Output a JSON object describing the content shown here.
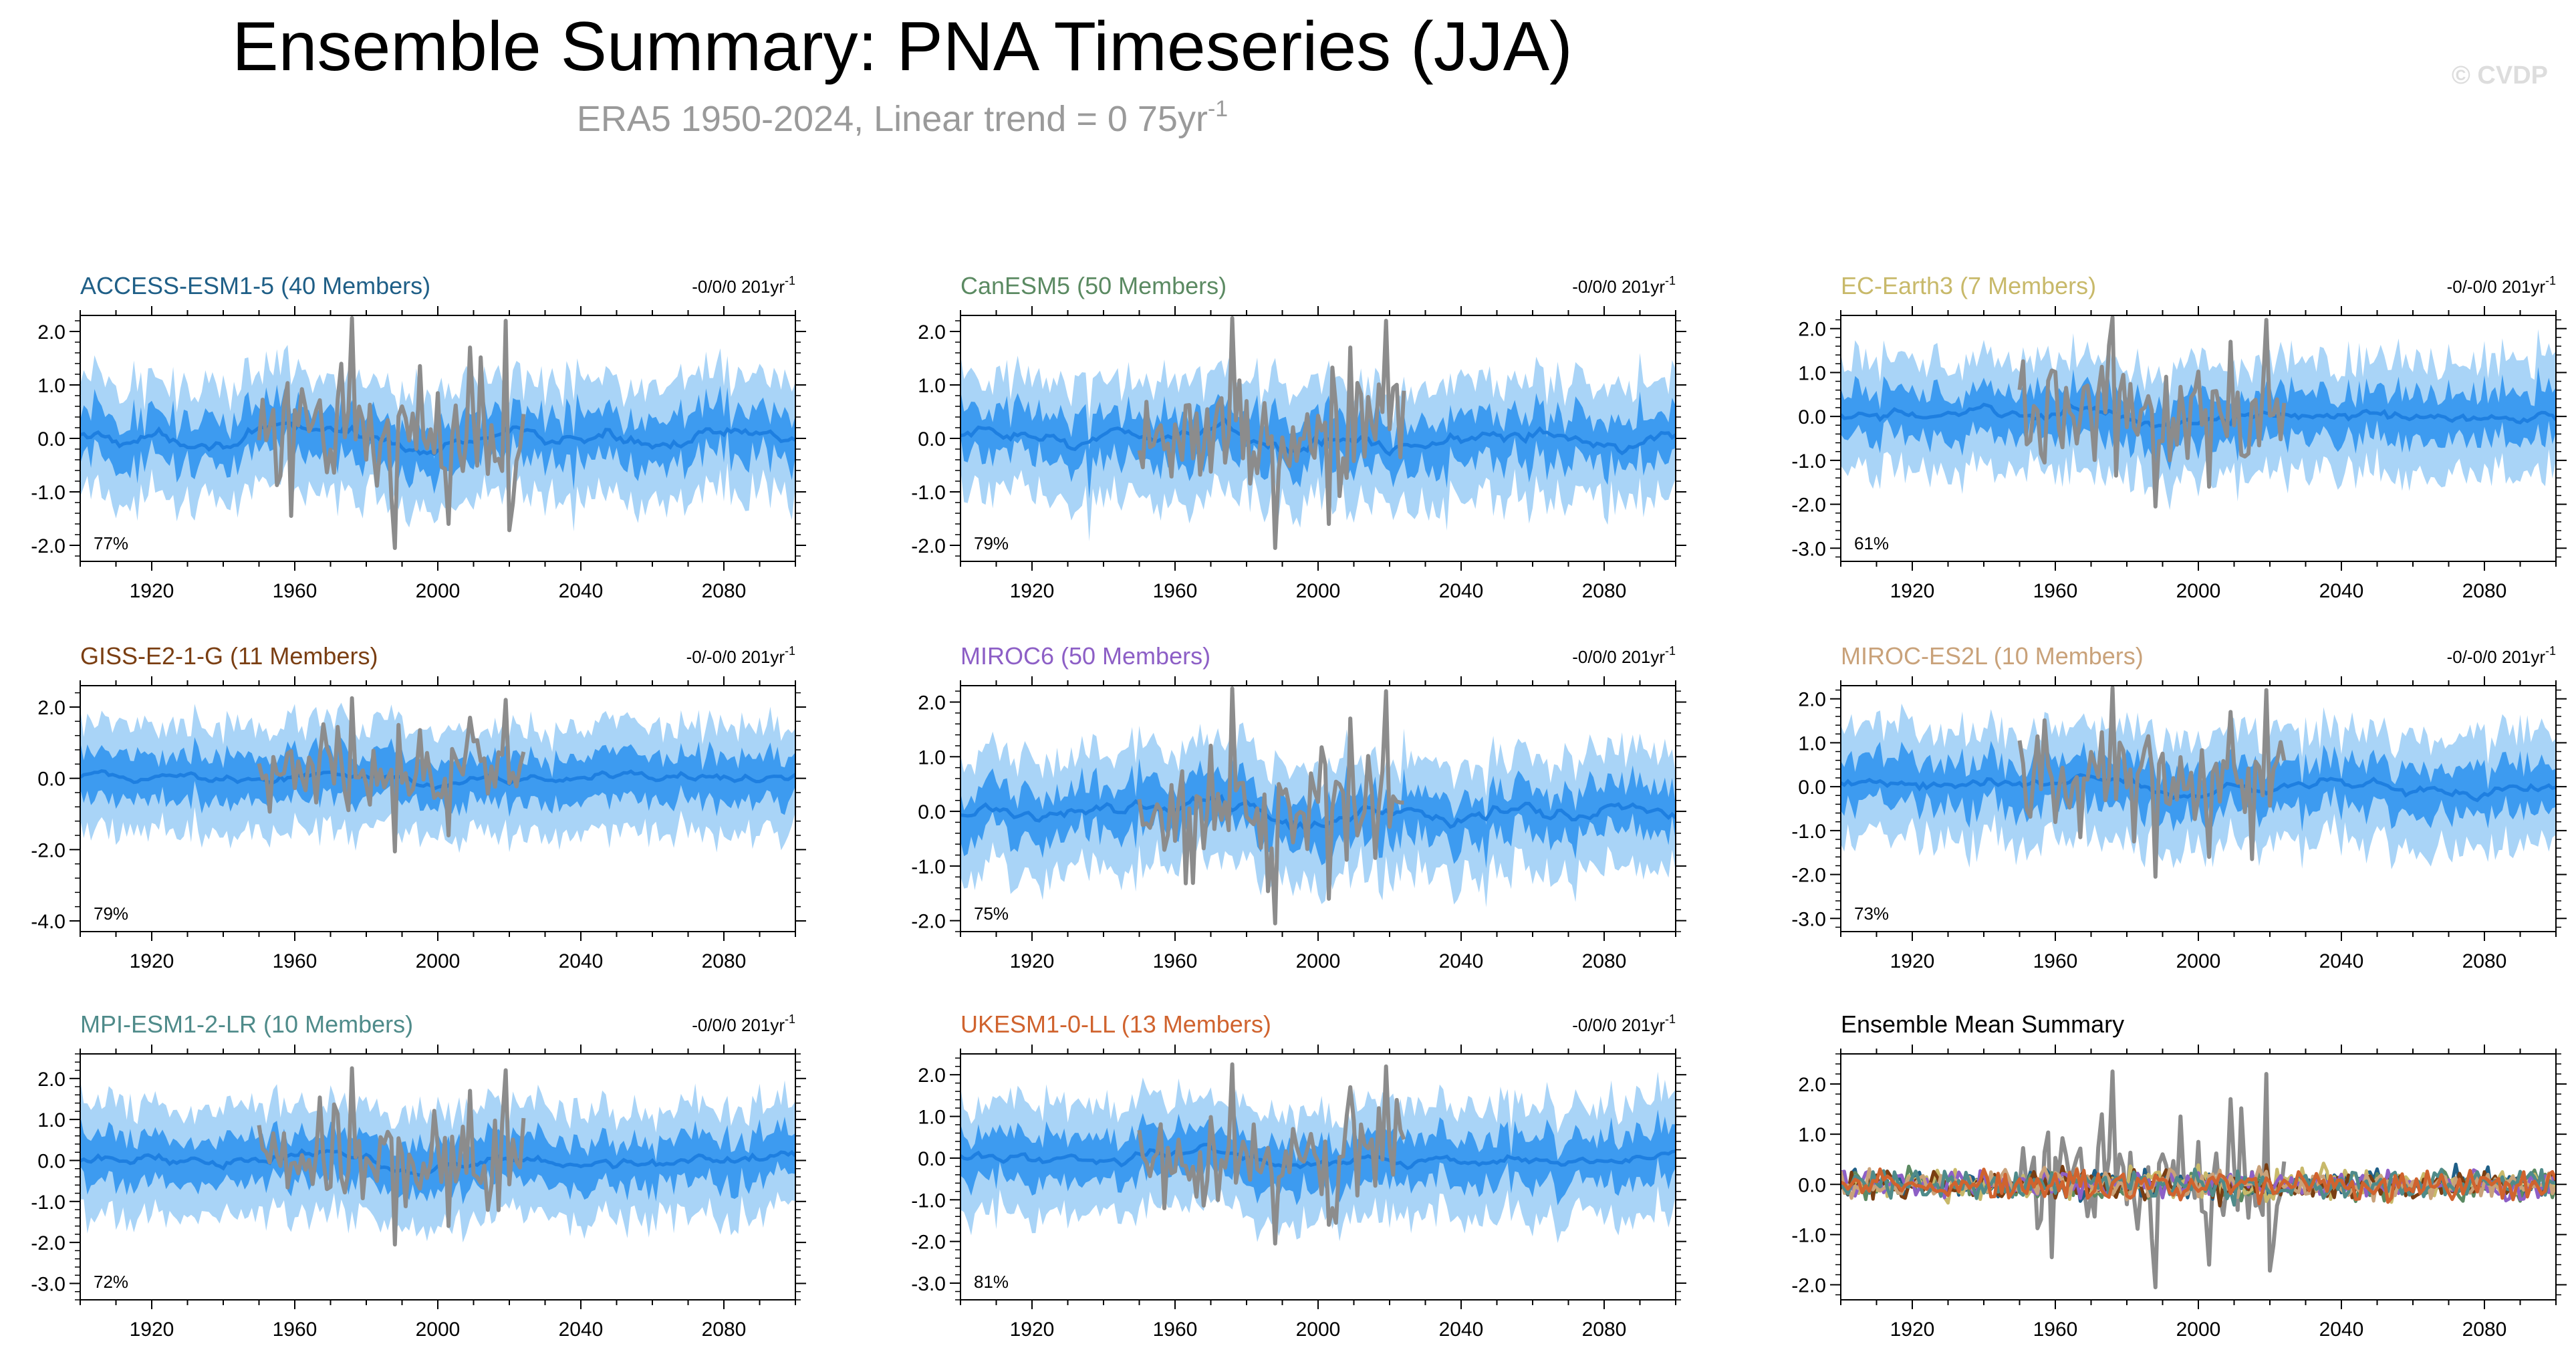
{
  "header": {
    "title": "Ensemble Summary: PNA Timeseries (JJA)",
    "subtitle_text": "ERA5 1950-2024, Linear trend = 0 75yr",
    "subtitle_sup": "-1",
    "watermark": "© CVDP"
  },
  "colors": {
    "spread_outer": "#a9d4f7",
    "spread_inner": "#3d9bf0",
    "ens_mean": "#1e7fe0",
    "observed": "#8c8c8c"
  },
  "chart_data": [
    {
      "type": "line",
      "panel": "ACCESS-ESM1-5",
      "title": "ACCESS-ESM1-5 (40 Members)",
      "title_color": "#1f5f87",
      "trend_text": "-0/0/0 201yr",
      "trend_sup": "-1",
      "pct": "77%",
      "x_ticks": [
        "1920",
        "1960",
        "2000",
        "2040",
        "2080"
      ],
      "xlim": [
        1900,
        2100
      ],
      "y_ticks": [
        "2.0",
        "1.0",
        "0.0",
        "-1.0",
        "-2.0"
      ],
      "y_tick_values": [
        2,
        1,
        0,
        -1,
        -2
      ],
      "ylim": [
        -2.3,
        2.3
      ],
      "series": [
        {
          "name": "Observed (ERA5)",
          "x_range": [
            1950,
            2024
          ]
        },
        {
          "name": "Ensemble mean",
          "x_range": [
            1900,
            2100
          ]
        },
        {
          "name": "Ensemble spread",
          "x_range": [
            1900,
            2100
          ]
        }
      ]
    },
    {
      "type": "line",
      "panel": "CanESM5",
      "title": "CanESM5 (50 Members)",
      "title_color": "#5b8a62",
      "trend_text": "-0/0/0 201yr",
      "trend_sup": "-1",
      "pct": "79%",
      "x_ticks": [
        "1920",
        "1960",
        "2000",
        "2040",
        "2080"
      ],
      "xlim": [
        1900,
        2100
      ],
      "y_ticks": [
        "2.0",
        "1.0",
        "0.0",
        "-1.0",
        "-2.0"
      ],
      "y_tick_values": [
        2,
        1,
        0,
        -1,
        -2
      ],
      "ylim": [
        -2.3,
        2.3
      ],
      "series": [
        {
          "name": "Observed (ERA5)",
          "x_range": [
            1950,
            2024
          ]
        },
        {
          "name": "Ensemble mean",
          "x_range": [
            1900,
            2100
          ]
        },
        {
          "name": "Ensemble spread",
          "x_range": [
            1900,
            2100
          ]
        }
      ]
    },
    {
      "type": "line",
      "panel": "EC-Earth3",
      "title": "EC-Earth3 (7 Members)",
      "title_color": "#c8b96a",
      "trend_text": "-0/-0/0 201yr",
      "trend_sup": "-1",
      "pct": "61%",
      "x_ticks": [
        "1920",
        "1960",
        "2000",
        "2040",
        "2080"
      ],
      "xlim": [
        1900,
        2100
      ],
      "y_ticks": [
        "2.0",
        "1.0",
        "0.0",
        "-1.0",
        "-2.0",
        "-3.0"
      ],
      "y_tick_values": [
        2,
        1,
        0,
        -1,
        -2,
        -3
      ],
      "ylim": [
        -3.3,
        2.3
      ],
      "series": [
        {
          "name": "Observed (ERA5)",
          "x_range": [
            1950,
            2024
          ]
        },
        {
          "name": "Ensemble mean",
          "x_range": [
            1900,
            2100
          ]
        },
        {
          "name": "Ensemble spread",
          "x_range": [
            1900,
            2100
          ]
        }
      ]
    },
    {
      "type": "line",
      "panel": "GISS-E2-1-G",
      "title": "GISS-E2-1-G (11 Members)",
      "title_color": "#7a3e12",
      "trend_text": "-0/-0/0 201yr",
      "trend_sup": "-1",
      "pct": "79%",
      "x_ticks": [
        "1920",
        "1960",
        "2000",
        "2040",
        "2080"
      ],
      "xlim": [
        1900,
        2100
      ],
      "y_ticks": [
        "2.0",
        "0.0",
        "-2.0",
        "-4.0"
      ],
      "y_tick_values": [
        2,
        0,
        -2,
        -4
      ],
      "ylim": [
        -4.3,
        2.6
      ],
      "series": [
        {
          "name": "Observed (ERA5)",
          "x_range": [
            1950,
            2024
          ]
        },
        {
          "name": "Ensemble mean",
          "x_range": [
            1900,
            2100
          ]
        },
        {
          "name": "Ensemble spread",
          "x_range": [
            1900,
            2100
          ]
        }
      ]
    },
    {
      "type": "line",
      "panel": "MIROC6",
      "title": "MIROC6 (50 Members)",
      "title_color": "#8d5fc6",
      "trend_text": "-0/0/0 201yr",
      "trend_sup": "-1",
      "pct": "75%",
      "x_ticks": [
        "1920",
        "1960",
        "2000",
        "2040",
        "2080"
      ],
      "xlim": [
        1900,
        2100
      ],
      "y_ticks": [
        "2.0",
        "1.0",
        "0.0",
        "-1.0",
        "-2.0"
      ],
      "y_tick_values": [
        2,
        1,
        0,
        -1,
        -2
      ],
      "ylim": [
        -2.2,
        2.3
      ],
      "series": [
        {
          "name": "Observed (ERA5)",
          "x_range": [
            1950,
            2024
          ]
        },
        {
          "name": "Ensemble mean",
          "x_range": [
            1900,
            2100
          ]
        },
        {
          "name": "Ensemble spread",
          "x_range": [
            1900,
            2100
          ]
        }
      ]
    },
    {
      "type": "line",
      "panel": "MIROC-ES2L",
      "title": "MIROC-ES2L (10 Members)",
      "title_color": "#c9a27a",
      "trend_text": "-0/-0/0 201yr",
      "trend_sup": "-1",
      "pct": "73%",
      "x_ticks": [
        "1920",
        "1960",
        "2000",
        "2040",
        "2080"
      ],
      "xlim": [
        1900,
        2100
      ],
      "y_ticks": [
        "2.0",
        "1.0",
        "0.0",
        "-1.0",
        "-2.0",
        "-3.0"
      ],
      "y_tick_values": [
        2,
        1,
        0,
        -1,
        -2,
        -3
      ],
      "ylim": [
        -3.3,
        2.3
      ],
      "series": [
        {
          "name": "Observed (ERA5)",
          "x_range": [
            1950,
            2024
          ]
        },
        {
          "name": "Ensemble mean",
          "x_range": [
            1900,
            2100
          ]
        },
        {
          "name": "Ensemble spread",
          "x_range": [
            1900,
            2100
          ]
        }
      ]
    },
    {
      "type": "line",
      "panel": "MPI-ESM1-2-LR",
      "title": "MPI-ESM1-2-LR (10 Members)",
      "title_color": "#4f8b8a",
      "trend_text": "-0/0/0 201yr",
      "trend_sup": "-1",
      "pct": "72%",
      "x_ticks": [
        "1920",
        "1960",
        "2000",
        "2040",
        "2080"
      ],
      "xlim": [
        1900,
        2100
      ],
      "y_ticks": [
        "2.0",
        "1.0",
        "0.0",
        "-1.0",
        "-2.0",
        "-3.0"
      ],
      "y_tick_values": [
        2,
        1,
        0,
        -1,
        -2,
        -3
      ],
      "ylim": [
        -3.4,
        2.6
      ],
      "series": [
        {
          "name": "Observed (ERA5)",
          "x_range": [
            1950,
            2024
          ]
        },
        {
          "name": "Ensemble mean",
          "x_range": [
            1900,
            2100
          ]
        },
        {
          "name": "Ensemble spread",
          "x_range": [
            1900,
            2100
          ]
        }
      ]
    },
    {
      "type": "line",
      "panel": "UKESM1-0-LL",
      "title": "UKESM1-0-LL (13 Members)",
      "title_color": "#d0632e",
      "trend_text": "-0/0/0 201yr",
      "trend_sup": "-1",
      "pct": "81%",
      "x_ticks": [
        "1920",
        "1960",
        "2000",
        "2040",
        "2080"
      ],
      "xlim": [
        1900,
        2100
      ],
      "y_ticks": [
        "2.0",
        "1.0",
        "0.0",
        "-1.0",
        "-2.0",
        "-3.0"
      ],
      "y_tick_values": [
        2,
        1,
        0,
        -1,
        -2,
        -3
      ],
      "ylim": [
        -3.4,
        2.5
      ],
      "series": [
        {
          "name": "Observed (ERA5)",
          "x_range": [
            1950,
            2024
          ]
        },
        {
          "name": "Ensemble mean",
          "x_range": [
            1900,
            2100
          ]
        },
        {
          "name": "Ensemble spread",
          "x_range": [
            1900,
            2100
          ]
        }
      ]
    },
    {
      "type": "line",
      "panel": "Ensemble Mean Summary",
      "title": "Ensemble Mean Summary",
      "title_color": "#000000",
      "trend_text": "",
      "trend_sup": "",
      "pct": "",
      "x_ticks": [
        "1920",
        "1960",
        "2000",
        "2040",
        "2080"
      ],
      "xlim": [
        1900,
        2100
      ],
      "y_ticks": [
        "2.0",
        "1.0",
        "0.0",
        "-1.0",
        "-2.0"
      ],
      "y_tick_values": [
        2,
        1,
        0,
        -1,
        -2
      ],
      "ylim": [
        -2.3,
        2.6
      ],
      "series": [
        {
          "name": "ERA5",
          "color": "#8c8c8c",
          "x_range": [
            1950,
            2024
          ]
        },
        {
          "name": "ACCESS-ESM1-5",
          "color": "#1f5f87",
          "x_range": [
            1900,
            2100
          ]
        },
        {
          "name": "CanESM5",
          "color": "#5b8a62",
          "x_range": [
            1900,
            2100
          ]
        },
        {
          "name": "EC-Earth3",
          "color": "#c8b96a",
          "x_range": [
            1900,
            2100
          ]
        },
        {
          "name": "GISS-E2-1-G",
          "color": "#7a3e12",
          "x_range": [
            1900,
            2100
          ]
        },
        {
          "name": "MIROC6",
          "color": "#8d5fc6",
          "x_range": [
            1900,
            2100
          ]
        },
        {
          "name": "MIROC-ES2L",
          "color": "#c9a27a",
          "x_range": [
            1900,
            2100
          ]
        },
        {
          "name": "MPI-ESM1-2-LR",
          "color": "#4f8b8a",
          "x_range": [
            1900,
            2100
          ]
        },
        {
          "name": "UKESM1-0-LL",
          "color": "#d0632e",
          "x_range": [
            1900,
            2100
          ]
        }
      ]
    }
  ]
}
